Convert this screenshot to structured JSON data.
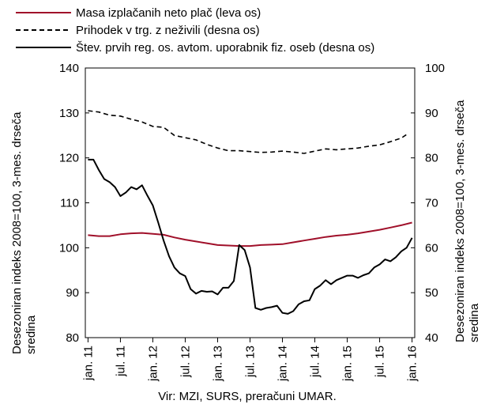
{
  "chart_data": {
    "type": "line",
    "x_tick_labels": [
      "jan. 11",
      "jul. 11",
      "jan. 12",
      "jul. 12",
      "jan. 13",
      "jul. 13",
      "jan. 14",
      "jul. 14",
      "jan. 15",
      "jul. 15",
      "jan. 16"
    ],
    "x_start": "2011-01",
    "x_end": "2016-01",
    "ylim_left": [
      80,
      140
    ],
    "ylim_right": [
      40,
      100
    ],
    "yticks_left": [
      80,
      90,
      100,
      110,
      120,
      130,
      140
    ],
    "yticks_right": [
      40,
      50,
      60,
      70,
      80,
      90,
      100
    ],
    "ylabel_left": "Desezoniran indeks 2008=100, 3-mes. drseča sredina",
    "ylabel_right": "Desezoniran indeks 2008=100, 3-mes. drseča sredina",
    "source_note": "Vir: MZI, SURS, preračuni UMAR.",
    "grid": false,
    "legend_position": "top",
    "series": [
      {
        "name": "Masa izplačanih neto plač (leva os)",
        "axis": "left",
        "color": "#a0102a",
        "dash": "solid",
        "points": [
          [
            "2011-01",
            102.8
          ],
          [
            "2011-03",
            102.6
          ],
          [
            "2011-05",
            102.6
          ],
          [
            "2011-07",
            103.0
          ],
          [
            "2011-09",
            103.2
          ],
          [
            "2011-11",
            103.3
          ],
          [
            "2012-01",
            103.1
          ],
          [
            "2012-03",
            102.9
          ],
          [
            "2012-05",
            102.3
          ],
          [
            "2012-07",
            101.8
          ],
          [
            "2012-09",
            101.4
          ],
          [
            "2012-11",
            101.0
          ],
          [
            "2013-01",
            100.6
          ],
          [
            "2013-03",
            100.5
          ],
          [
            "2013-05",
            100.4
          ],
          [
            "2013-07",
            100.4
          ],
          [
            "2013-09",
            100.6
          ],
          [
            "2013-11",
            100.7
          ],
          [
            "2014-01",
            100.8
          ],
          [
            "2014-03",
            101.2
          ],
          [
            "2014-05",
            101.6
          ],
          [
            "2014-07",
            102.0
          ],
          [
            "2014-09",
            102.4
          ],
          [
            "2014-11",
            102.7
          ],
          [
            "2015-01",
            102.9
          ],
          [
            "2015-03",
            103.2
          ],
          [
            "2015-05",
            103.6
          ],
          [
            "2015-07",
            104.0
          ],
          [
            "2015-09",
            104.5
          ],
          [
            "2015-11",
            105.0
          ],
          [
            "2016-01",
            105.6
          ]
        ]
      },
      {
        "name": "Prihodek v trg. z neživili (desna os)",
        "axis": "right",
        "color": "#000000",
        "dash": "dashed",
        "points": [
          [
            "2011-01",
            90.5
          ],
          [
            "2011-03",
            90.2
          ],
          [
            "2011-05",
            89.5
          ],
          [
            "2011-07",
            89.3
          ],
          [
            "2011-09",
            88.6
          ],
          [
            "2011-11",
            88.0
          ],
          [
            "2012-01",
            87.0
          ],
          [
            "2012-03",
            86.8
          ],
          [
            "2012-05",
            85.0
          ],
          [
            "2012-07",
            84.5
          ],
          [
            "2012-09",
            84.0
          ],
          [
            "2012-11",
            83.0
          ],
          [
            "2013-01",
            82.2
          ],
          [
            "2013-03",
            81.6
          ],
          [
            "2013-05",
            81.6
          ],
          [
            "2013-07",
            81.4
          ],
          [
            "2013-09",
            81.2
          ],
          [
            "2013-11",
            81.3
          ],
          [
            "2014-01",
            81.5
          ],
          [
            "2014-03",
            81.3
          ],
          [
            "2014-05",
            81.0
          ],
          [
            "2014-07",
            81.5
          ],
          [
            "2014-09",
            82.0
          ],
          [
            "2014-11",
            81.8
          ],
          [
            "2015-01",
            82.0
          ],
          [
            "2015-03",
            82.2
          ],
          [
            "2015-05",
            82.6
          ],
          [
            "2015-07",
            82.9
          ],
          [
            "2015-09",
            83.6
          ],
          [
            "2015-11",
            84.4
          ],
          [
            "2015-12",
            85.2
          ]
        ]
      },
      {
        "name": "Štev. prvih reg. os. avtom. uporabnik fiz. oseb (desna os)",
        "axis": "right",
        "color": "#000000",
        "dash": "solid",
        "points": [
          [
            "2011-01",
            79.6
          ],
          [
            "2011-02",
            79.6
          ],
          [
            "2011-03",
            77.3
          ],
          [
            "2011-04",
            75.3
          ],
          [
            "2011-05",
            74.6
          ],
          [
            "2011-06",
            73.5
          ],
          [
            "2011-07",
            71.5
          ],
          [
            "2011-08",
            72.3
          ],
          [
            "2011-09",
            73.5
          ],
          [
            "2011-10",
            73.0
          ],
          [
            "2011-11",
            73.9
          ],
          [
            "2011-12",
            71.6
          ],
          [
            "2012-01",
            69.4
          ],
          [
            "2012-02",
            65.6
          ],
          [
            "2012-03",
            61.6
          ],
          [
            "2012-04",
            58.1
          ],
          [
            "2012-05",
            55.6
          ],
          [
            "2012-06",
            54.3
          ],
          [
            "2012-07",
            53.7
          ],
          [
            "2012-08",
            50.8
          ],
          [
            "2012-09",
            49.8
          ],
          [
            "2012-10",
            50.4
          ],
          [
            "2012-11",
            50.2
          ],
          [
            "2012-12",
            50.3
          ],
          [
            "2013-01",
            49.6
          ],
          [
            "2013-02",
            51.1
          ],
          [
            "2013-03",
            51.1
          ],
          [
            "2013-04",
            52.6
          ],
          [
            "2013-05",
            60.6
          ],
          [
            "2013-06",
            59.5
          ],
          [
            "2013-07",
            55.6
          ],
          [
            "2013-08",
            46.6
          ],
          [
            "2013-09",
            46.2
          ],
          [
            "2013-10",
            46.6
          ],
          [
            "2013-11",
            46.8
          ],
          [
            "2013-12",
            47.1
          ],
          [
            "2014-01",
            45.5
          ],
          [
            "2014-02",
            45.3
          ],
          [
            "2014-03",
            45.9
          ],
          [
            "2014-04",
            47.4
          ],
          [
            "2014-05",
            48.1
          ],
          [
            "2014-06",
            48.3
          ],
          [
            "2014-07",
            50.8
          ],
          [
            "2014-08",
            51.6
          ],
          [
            "2014-09",
            52.8
          ],
          [
            "2014-10",
            51.9
          ],
          [
            "2014-11",
            52.8
          ],
          [
            "2014-12",
            53.3
          ],
          [
            "2015-01",
            53.8
          ],
          [
            "2015-02",
            53.8
          ],
          [
            "2015-03",
            53.3
          ],
          [
            "2015-04",
            53.9
          ],
          [
            "2015-05",
            54.3
          ],
          [
            "2015-06",
            55.6
          ],
          [
            "2015-07",
            56.3
          ],
          [
            "2015-08",
            57.4
          ],
          [
            "2015-09",
            57.0
          ],
          [
            "2015-10",
            57.9
          ],
          [
            "2015-11",
            59.2
          ],
          [
            "2015-12",
            60.0
          ],
          [
            "2016-01",
            62.2
          ]
        ]
      }
    ]
  }
}
